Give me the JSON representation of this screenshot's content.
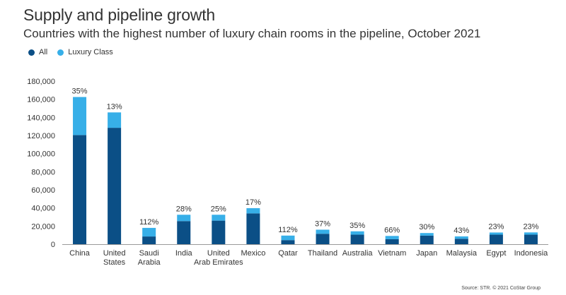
{
  "title": "Supply and pipeline growth",
  "subtitle": "Countries with the highest number of luxury chain rooms in the pipeline, October 2021",
  "legend": [
    {
      "label": "All",
      "color": "#0b4f86"
    },
    {
      "label": "Luxury Class",
      "color": "#37afe8"
    }
  ],
  "source": "Source: STR. © 2021 CoStar Group",
  "chart_data": {
    "type": "bar",
    "stacked": true,
    "categories": [
      [
        "China"
      ],
      [
        "United",
        "States"
      ],
      [
        "Saudi",
        "Arabia"
      ],
      [
        "India"
      ],
      [
        "United",
        "Arab Emirates"
      ],
      [
        "Mexico"
      ],
      [
        "Qatar"
      ],
      [
        "Thailand"
      ],
      [
        "Australia"
      ],
      [
        "Vietnam"
      ],
      [
        "Japan"
      ],
      [
        "Malaysia"
      ],
      [
        "Egypt"
      ],
      [
        "Indonesia"
      ]
    ],
    "series": [
      {
        "name": "All",
        "color": "#0b4f86",
        "values": [
          120500,
          128500,
          8500,
          25500,
          26000,
          34000,
          4500,
          11500,
          10500,
          5500,
          9500,
          6000,
          10500,
          10500
        ]
      },
      {
        "name": "Luxury Class",
        "color": "#37afe8",
        "values": [
          42000,
          17000,
          9500,
          7000,
          6500,
          5800,
          5000,
          4500,
          3700,
          3600,
          2800,
          2600,
          2400,
          2500
        ]
      }
    ],
    "data_labels": [
      "35%",
      "13%",
      "112%",
      "28%",
      "25%",
      "17%",
      "112%",
      "37%",
      "35%",
      "66%",
      "30%",
      "43%",
      "23%",
      "23%"
    ],
    "ylim": [
      0,
      180000
    ],
    "yticks": [
      0,
      20000,
      40000,
      60000,
      80000,
      100000,
      120000,
      140000,
      160000,
      180000
    ],
    "ytick_labels": [
      "0",
      "20,000",
      "40,000",
      "60,000",
      "80,000",
      "100,000",
      "120,000",
      "140,000",
      "160,000",
      "180,000"
    ],
    "grid": false,
    "legend_position": "top-left"
  }
}
